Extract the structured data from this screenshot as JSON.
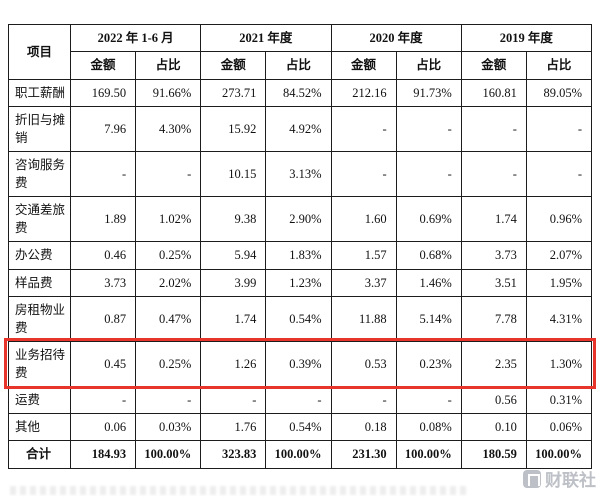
{
  "table": {
    "item_header": "项目",
    "periods": [
      "2022 年 1-6 月",
      "2021 年度",
      "2020 年度",
      "2019 年度"
    ],
    "sub_headers": [
      "金额",
      "占比"
    ],
    "rows": [
      {
        "item": "职工薪酬",
        "values": [
          "169.50",
          "91.66%",
          "273.71",
          "84.52%",
          "212.16",
          "91.73%",
          "160.81",
          "89.05%"
        ],
        "highlighted": false,
        "total": false
      },
      {
        "item": "折旧与摊销",
        "values": [
          "7.96",
          "4.30%",
          "15.92",
          "4.92%",
          "-",
          "-",
          "-",
          "-"
        ],
        "highlighted": false,
        "total": false
      },
      {
        "item": "咨询服务费",
        "values": [
          "-",
          "-",
          "10.15",
          "3.13%",
          "-",
          "-",
          "-",
          "-"
        ],
        "highlighted": false,
        "total": false
      },
      {
        "item": "交通差旅费",
        "values": [
          "1.89",
          "1.02%",
          "9.38",
          "2.90%",
          "1.60",
          "0.69%",
          "1.74",
          "0.96%"
        ],
        "highlighted": false,
        "total": false
      },
      {
        "item": "办公费",
        "values": [
          "0.46",
          "0.25%",
          "5.94",
          "1.83%",
          "1.57",
          "0.68%",
          "3.73",
          "2.07%"
        ],
        "highlighted": false,
        "total": false
      },
      {
        "item": "样品费",
        "values": [
          "3.73",
          "2.02%",
          "3.99",
          "1.23%",
          "3.37",
          "1.46%",
          "3.51",
          "1.95%"
        ],
        "highlighted": false,
        "total": false
      },
      {
        "item": "房租物业费",
        "values": [
          "0.87",
          "0.47%",
          "1.74",
          "0.54%",
          "11.88",
          "5.14%",
          "7.78",
          "4.31%"
        ],
        "highlighted": false,
        "total": false
      },
      {
        "item": "业务招待费",
        "values": [
          "0.45",
          "0.25%",
          "1.26",
          "0.39%",
          "0.53",
          "0.23%",
          "2.35",
          "1.30%"
        ],
        "highlighted": true,
        "total": false
      },
      {
        "item": "运费",
        "values": [
          "-",
          "-",
          "-",
          "-",
          "-",
          "-",
          "0.56",
          "0.31%"
        ],
        "highlighted": false,
        "total": false
      },
      {
        "item": "其他",
        "values": [
          "0.06",
          "0.03%",
          "1.76",
          "0.54%",
          "0.18",
          "0.08%",
          "0.10",
          "0.06%"
        ],
        "highlighted": false,
        "total": false
      },
      {
        "item": "合计",
        "values": [
          "184.93",
          "100.00%",
          "323.83",
          "100.00%",
          "231.30",
          "100.00%",
          "180.59",
          "100.00%"
        ],
        "highlighted": false,
        "total": true
      }
    ]
  },
  "annotations": {
    "highlight_color": "#e8352b"
  },
  "watermark": {
    "text": "财联社"
  }
}
